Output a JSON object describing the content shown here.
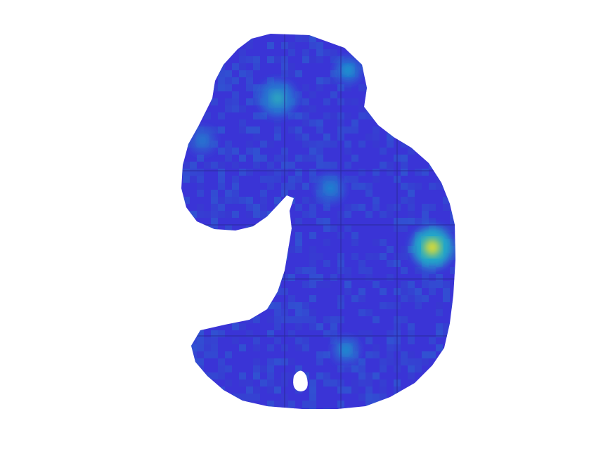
{
  "figure": {
    "background": "#ffffff",
    "colormap": {
      "name": "parula",
      "low": "#3a2fd0",
      "mid": "#18a6d0",
      "high": "#f9e41c"
    }
  },
  "hotspots": [
    {
      "name": "hotspot-right-bright",
      "level": 0.95
    },
    {
      "name": "hotspot-upper-left",
      "level": 0.55
    },
    {
      "name": "hotspot-top-right",
      "level": 0.5
    },
    {
      "name": "hotspot-bottom-center",
      "level": 0.45
    },
    {
      "name": "hotspot-center",
      "level": 0.4
    },
    {
      "name": "hotspot-left-edge",
      "level": 0.35
    }
  ]
}
